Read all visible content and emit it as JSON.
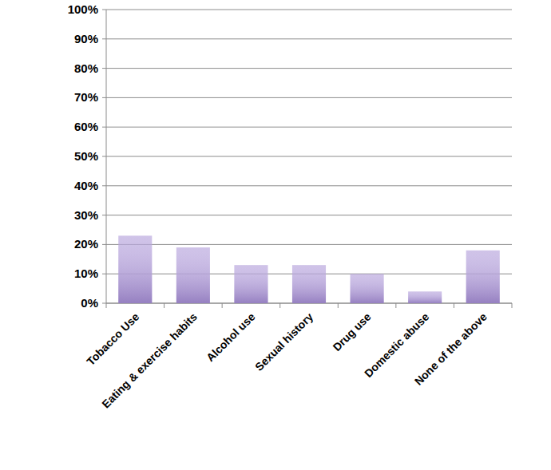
{
  "chart_data": {
    "type": "bar",
    "categories": [
      "Tobacco Use",
      "Eating & exercise habits",
      "Alcohol use",
      "Sexual history",
      "Drug use",
      "Domestic abuse",
      "None of the above"
    ],
    "values": [
      23,
      19,
      13,
      13,
      10,
      4,
      18
    ],
    "color": "#b6a3dc",
    "ylim": [
      0,
      100
    ],
    "yticks": [
      {
        "value": 0,
        "label": "0%"
      },
      {
        "value": 10,
        "label": "10%"
      },
      {
        "value": 20,
        "label": "20%"
      },
      {
        "value": 30,
        "label": "30%"
      },
      {
        "value": 40,
        "label": "40%"
      },
      {
        "value": 50,
        "label": "50%"
      },
      {
        "value": 60,
        "label": "60%"
      },
      {
        "value": 70,
        "label": "70%"
      },
      {
        "value": 80,
        "label": "80%"
      },
      {
        "value": 90,
        "label": "90%"
      },
      {
        "value": 100,
        "label": "100%"
      }
    ],
    "grid": true
  }
}
